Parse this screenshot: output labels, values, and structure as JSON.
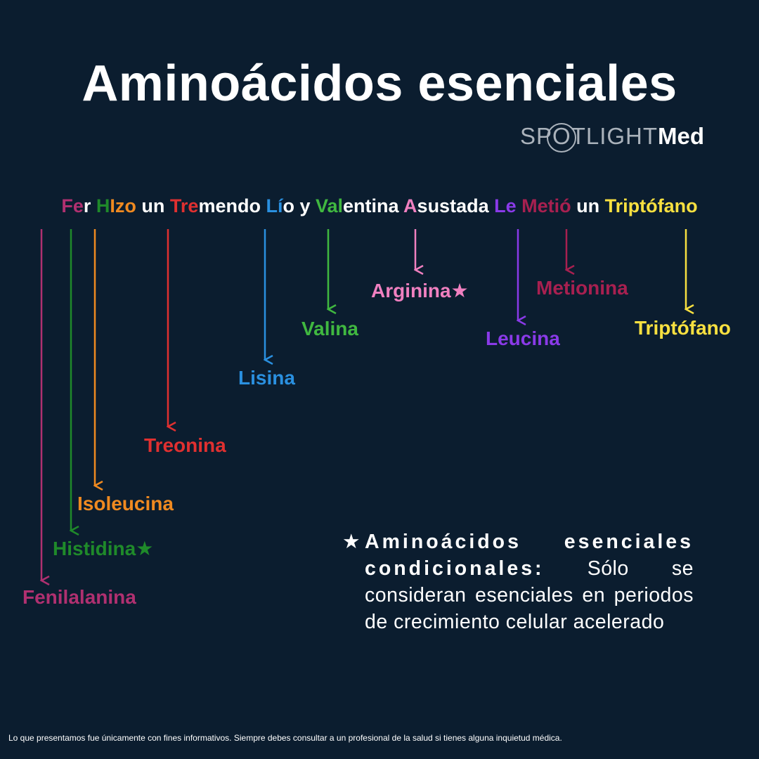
{
  "title": "Aminoácidos esenciales",
  "logo": {
    "thin": "SPOTLIGHT",
    "bold": "Med"
  },
  "mnemonic": [
    {
      "text": "Fe",
      "color": "#b03070"
    },
    {
      "text": "r ",
      "color": "#ffffff"
    },
    {
      "text": "H",
      "color": "#1f8a2a"
    },
    {
      "text": "I",
      "color": "#f08a20"
    },
    {
      "text": "zo",
      "color": "#f08a20"
    },
    {
      "text": " un ",
      "color": "#ffffff"
    },
    {
      "text": "Tre",
      "color": "#e03030"
    },
    {
      "text": "mendo ",
      "color": "#ffffff"
    },
    {
      "text": "Lí",
      "color": "#2a90e0"
    },
    {
      "text": "o y ",
      "color": "#ffffff"
    },
    {
      "text": "Val",
      "color": "#40b840"
    },
    {
      "text": "entina ",
      "color": "#ffffff"
    },
    {
      "text": "A",
      "color": "#f080c0"
    },
    {
      "text": "sustada ",
      "color": "#ffffff"
    },
    {
      "text": "Le",
      "color": "#8a3ae8"
    },
    {
      "text": " ",
      "color": "#ffffff"
    },
    {
      "text": "Met",
      "color": "#a82050"
    },
    {
      "text": "ió",
      "color": "#a82050"
    },
    {
      "text": " un ",
      "color": "#ffffff"
    },
    {
      "text": "Triptófano",
      "color": "#f8e040"
    }
  ],
  "amino_acids": [
    {
      "label": "Fenilalanina",
      "color": "#b03070"
    },
    {
      "label": "Histidina★",
      "color": "#1f8a2a"
    },
    {
      "label": "Isoleucina",
      "color": "#f08a20"
    },
    {
      "label": "Treonina",
      "color": "#e03030"
    },
    {
      "label": "Lisina",
      "color": "#2a90e0"
    },
    {
      "label": "Valina",
      "color": "#40b840"
    },
    {
      "label": "Arginina★",
      "color": "#f080c0"
    },
    {
      "label": "Leucina",
      "color": "#8a3ae8"
    },
    {
      "label": "Metionina",
      "color": "#a82050"
    },
    {
      "label": "Triptófano",
      "color": "#f8e040"
    }
  ],
  "footnote": {
    "star": "★",
    "heading": "Aminoácidos esenciales condicionales:",
    "text": " Sólo se consideran esenciales en periodos de crecimiento celular acelerado"
  },
  "disclaimer": "Lo que presentamos fue únicamente con fines informativos. Siempre debes consultar a un profesional de la salud si tienes alguna inquietud médica."
}
